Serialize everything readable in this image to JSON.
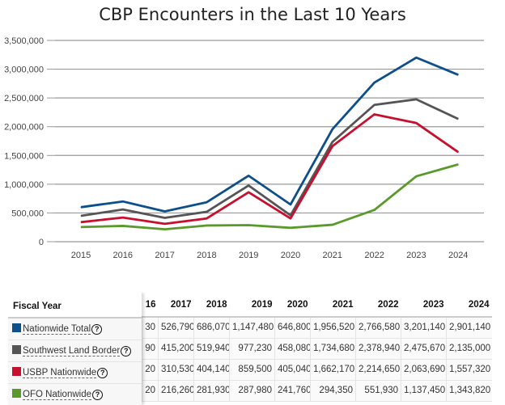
{
  "chart_data": {
    "type": "line",
    "title": "CBP Encounters in the Last 10 Years",
    "x": [
      "2015",
      "2016",
      "2017",
      "2018",
      "2019",
      "2020",
      "2021",
      "2022",
      "2023",
      "2024"
    ],
    "ylim": [
      0,
      3500000
    ],
    "yticks": [
      "0",
      "500,000",
      "1,000,000",
      "1,500,000",
      "2,000,000",
      "2,500,000",
      "3,000,000",
      "3,500,000"
    ],
    "grid": true,
    "series": [
      {
        "name": "Nationwide Total",
        "color": "#0d4f8b",
        "values": [
          600000,
          700000,
          526790,
          686070,
          1147480,
          646800,
          1956520,
          2766580,
          3201140,
          2901140
        ]
      },
      {
        "name": "Southwest Land Border",
        "color": "#555555",
        "values": [
          450000,
          560000,
          415200,
          519940,
          977230,
          458080,
          1734680,
          2378940,
          2475670,
          2135000
        ]
      },
      {
        "name": "USBP Nationwide",
        "color": "#c8102e",
        "values": [
          340000,
          420000,
          310530,
          404140,
          859500,
          405040,
          1662170,
          2214650,
          2063690,
          1557320
        ]
      },
      {
        "name": "OFO Nationwide",
        "color": "#5a9a2a",
        "values": [
          255000,
          275000,
          216260,
          281930,
          287980,
          241760,
          294350,
          551930,
          1137450,
          1343820
        ]
      }
    ]
  },
  "table": {
    "header_label": "Fiscal Year",
    "columns": [
      "16",
      "2017",
      "2018",
      "2019",
      "2020",
      "2021",
      "2022",
      "2023",
      "2024"
    ],
    "help_icon": "?",
    "rows": [
      {
        "label": "Nationwide Total",
        "color": "#0d4f8b",
        "cells": [
          "30",
          "526,790",
          "686,070",
          "1,147,480",
          "646,800",
          "1,956,520",
          "2,766,580",
          "3,201,140",
          "2,901,140"
        ]
      },
      {
        "label": "Southwest Land Border",
        "color": "#555555",
        "cells": [
          "90",
          "415,200",
          "519,940",
          "977,230",
          "458,080",
          "1,734,680",
          "2,378,940",
          "2,475,670",
          "2,135,000"
        ]
      },
      {
        "label": "USBP Nationwide",
        "color": "#c8102e",
        "cells": [
          "20",
          "310,530",
          "404,140",
          "859,500",
          "405,040",
          "1,662,170",
          "2,214,650",
          "2,063,690",
          "1,557,320"
        ]
      },
      {
        "label": "OFO Nationwide",
        "color": "#5a9a2a",
        "cells": [
          "20",
          "216,260",
          "281,930",
          "287,980",
          "241,760",
          "294,350",
          "551,930",
          "1,137,450",
          "1,343,820"
        ]
      }
    ]
  }
}
